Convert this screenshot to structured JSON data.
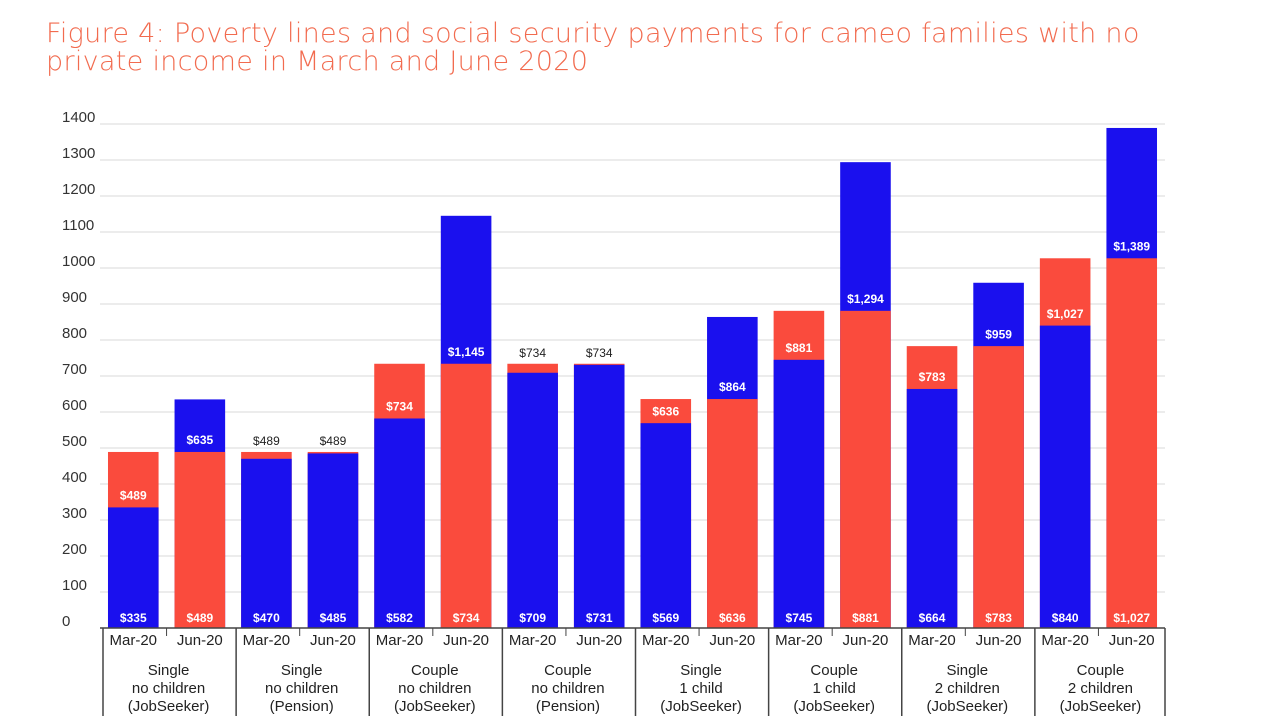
{
  "chart_data": {
    "type": "overlap-bar",
    "title": "Figure 4: Poverty lines and social security payments for cameo families with no private income in March and June 2020",
    "categories": [
      "Mar-20",
      "Jun-20",
      "Mar-20",
      "Jun-20",
      "Mar-20",
      "Jun-20",
      "Mar-20",
      "Jun-20",
      "Mar-20",
      "Jun-20",
      "Mar-20",
      "Jun-20",
      "Mar-20",
      "Jun-20",
      "Mar-20",
      "Jun-20"
    ],
    "groups": [
      [
        "Single",
        "no children",
        "(JobSeeker)"
      ],
      [
        "Single",
        "no children",
        "(Pension)"
      ],
      [
        "Couple",
        "no children",
        "(JobSeeker)"
      ],
      [
        "Couple",
        "no children",
        "(Pension)"
      ],
      [
        "Single",
        "1 child",
        "(JobSeeker)"
      ],
      [
        "Couple",
        "1 child",
        "(JobSeeker)"
      ],
      [
        "Single",
        "2 children",
        "(JobSeeker)"
      ],
      [
        "Couple",
        "2 children",
        "(JobSeeker)"
      ]
    ],
    "series": [
      {
        "color": "#1a10ee",
        "values": [
          335,
          635,
          470,
          485,
          582,
          1145,
          709,
          731,
          569,
          864,
          745,
          1294,
          664,
          959,
          840,
          1389
        ],
        "value_labels": [
          "$335",
          "$635",
          "$470",
          "$485",
          "$582",
          "$1,145",
          "$709",
          "$731",
          "$569",
          "$864",
          "$745",
          "$1,294",
          "$664",
          "$959",
          "$840",
          "$1,389"
        ]
      },
      {
        "color": "#fa4b3d",
        "values": [
          489,
          489,
          489,
          489,
          734,
          734,
          734,
          734,
          636,
          636,
          881,
          881,
          783,
          783,
          1027,
          1027
        ],
        "value_labels": [
          "$489",
          "$489",
          "$489",
          "$489",
          "$734",
          "$734",
          "$734",
          "$734",
          "$636",
          "$636",
          "$881",
          "$881",
          "$783",
          "$783",
          "$1,027",
          "$1,027"
        ]
      }
    ],
    "ylim": [
      0,
      1400
    ],
    "yticks": [
      0,
      100,
      200,
      300,
      400,
      500,
      600,
      700,
      800,
      900,
      1000,
      1100,
      1200,
      1300,
      1400
    ],
    "grid": true
  }
}
